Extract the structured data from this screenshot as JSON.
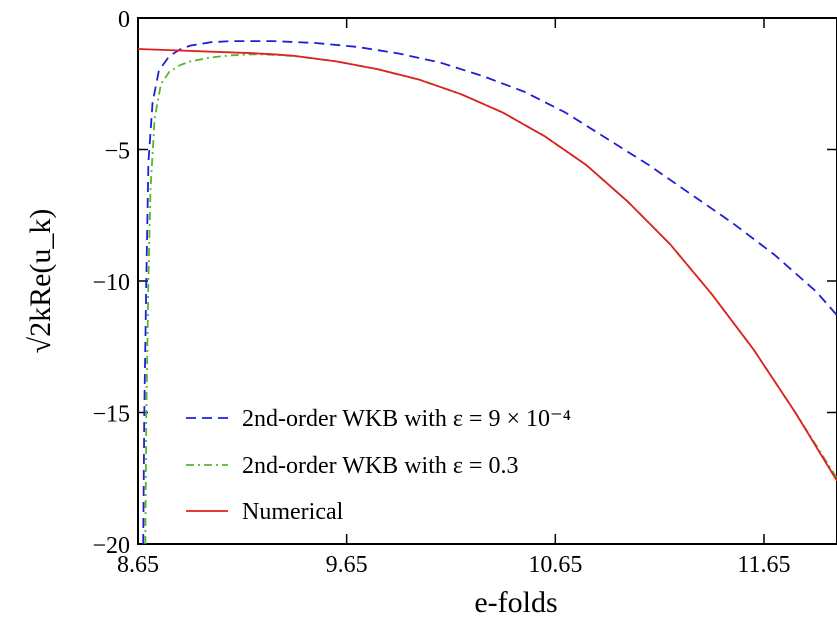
{
  "chart_data": {
    "type": "line",
    "xlabel": "e-folds",
    "ylabel": "√2kRe(u_k)",
    "xlim": [
      8.65,
      12.0
    ],
    "ylim": [
      -20,
      0
    ],
    "xticks": [
      8.65,
      9.65,
      10.65,
      11.65
    ],
    "xtick_labels": [
      "8.65",
      "9.65",
      "10.65",
      "11.65"
    ],
    "yticks": [
      0,
      -5,
      -10,
      -15,
      -20
    ],
    "ytick_labels": [
      "0",
      "−5",
      "−10",
      "−15",
      "−20"
    ],
    "grid": false,
    "legend_position": "bottom-left",
    "series": [
      {
        "name": "2nd-order WKB with ε = 9 × 10⁻⁴",
        "color": "#1f1fd6",
        "style": "dashed",
        "x": [
          8.675,
          8.68,
          8.69,
          8.7,
          8.72,
          8.75,
          8.8,
          8.85,
          8.9,
          9.0,
          9.1,
          9.3,
          9.5,
          9.7,
          9.9,
          10.1,
          10.3,
          10.5,
          10.7,
          10.9,
          11.1,
          11.3,
          11.5,
          11.7,
          11.9,
          12.0
        ],
        "y": [
          -20.0,
          -15.0,
          -10.0,
          -5.5,
          -3.2,
          -2.0,
          -1.45,
          -1.2,
          -1.05,
          -0.92,
          -0.88,
          -0.88,
          -0.95,
          -1.1,
          -1.35,
          -1.7,
          -2.2,
          -2.8,
          -3.6,
          -4.6,
          -5.6,
          -6.7,
          -7.8,
          -9.0,
          -10.4,
          -11.3
        ]
      },
      {
        "name": "2nd-order WKB with ε = 0.3",
        "color": "#55b72a",
        "style": "dash-dot",
        "x": [
          8.685,
          8.69,
          8.7,
          8.71,
          8.73,
          8.76,
          8.8,
          8.85,
          8.9,
          9.0,
          9.1,
          9.2,
          9.3,
          9.4,
          9.6,
          9.8,
          10.0,
          10.2,
          10.4,
          10.6,
          10.8,
          11.0,
          11.2,
          11.4,
          11.6,
          11.8,
          12.0
        ],
        "y": [
          -20.0,
          -15.0,
          -10.0,
          -6.5,
          -3.8,
          -2.5,
          -2.05,
          -1.8,
          -1.65,
          -1.5,
          -1.42,
          -1.38,
          -1.4,
          -1.45,
          -1.65,
          -1.95,
          -2.35,
          -2.9,
          -3.6,
          -4.5,
          -5.6,
          -7.0,
          -8.6,
          -10.5,
          -12.6,
          -15.0,
          -17.5
        ]
      },
      {
        "name": "Numerical",
        "color": "#e01f1f",
        "style": "solid",
        "x": [
          8.65,
          8.8,
          9.0,
          9.2,
          9.3,
          9.4,
          9.6,
          9.8,
          10.0,
          10.2,
          10.4,
          10.6,
          10.8,
          11.0,
          11.2,
          11.4,
          11.6,
          11.8,
          12.0
        ],
        "y": [
          -1.18,
          -1.22,
          -1.28,
          -1.34,
          -1.38,
          -1.44,
          -1.65,
          -1.95,
          -2.35,
          -2.9,
          -3.6,
          -4.5,
          -5.6,
          -7.0,
          -8.6,
          -10.5,
          -12.6,
          -15.0,
          -17.6
        ]
      }
    ]
  }
}
